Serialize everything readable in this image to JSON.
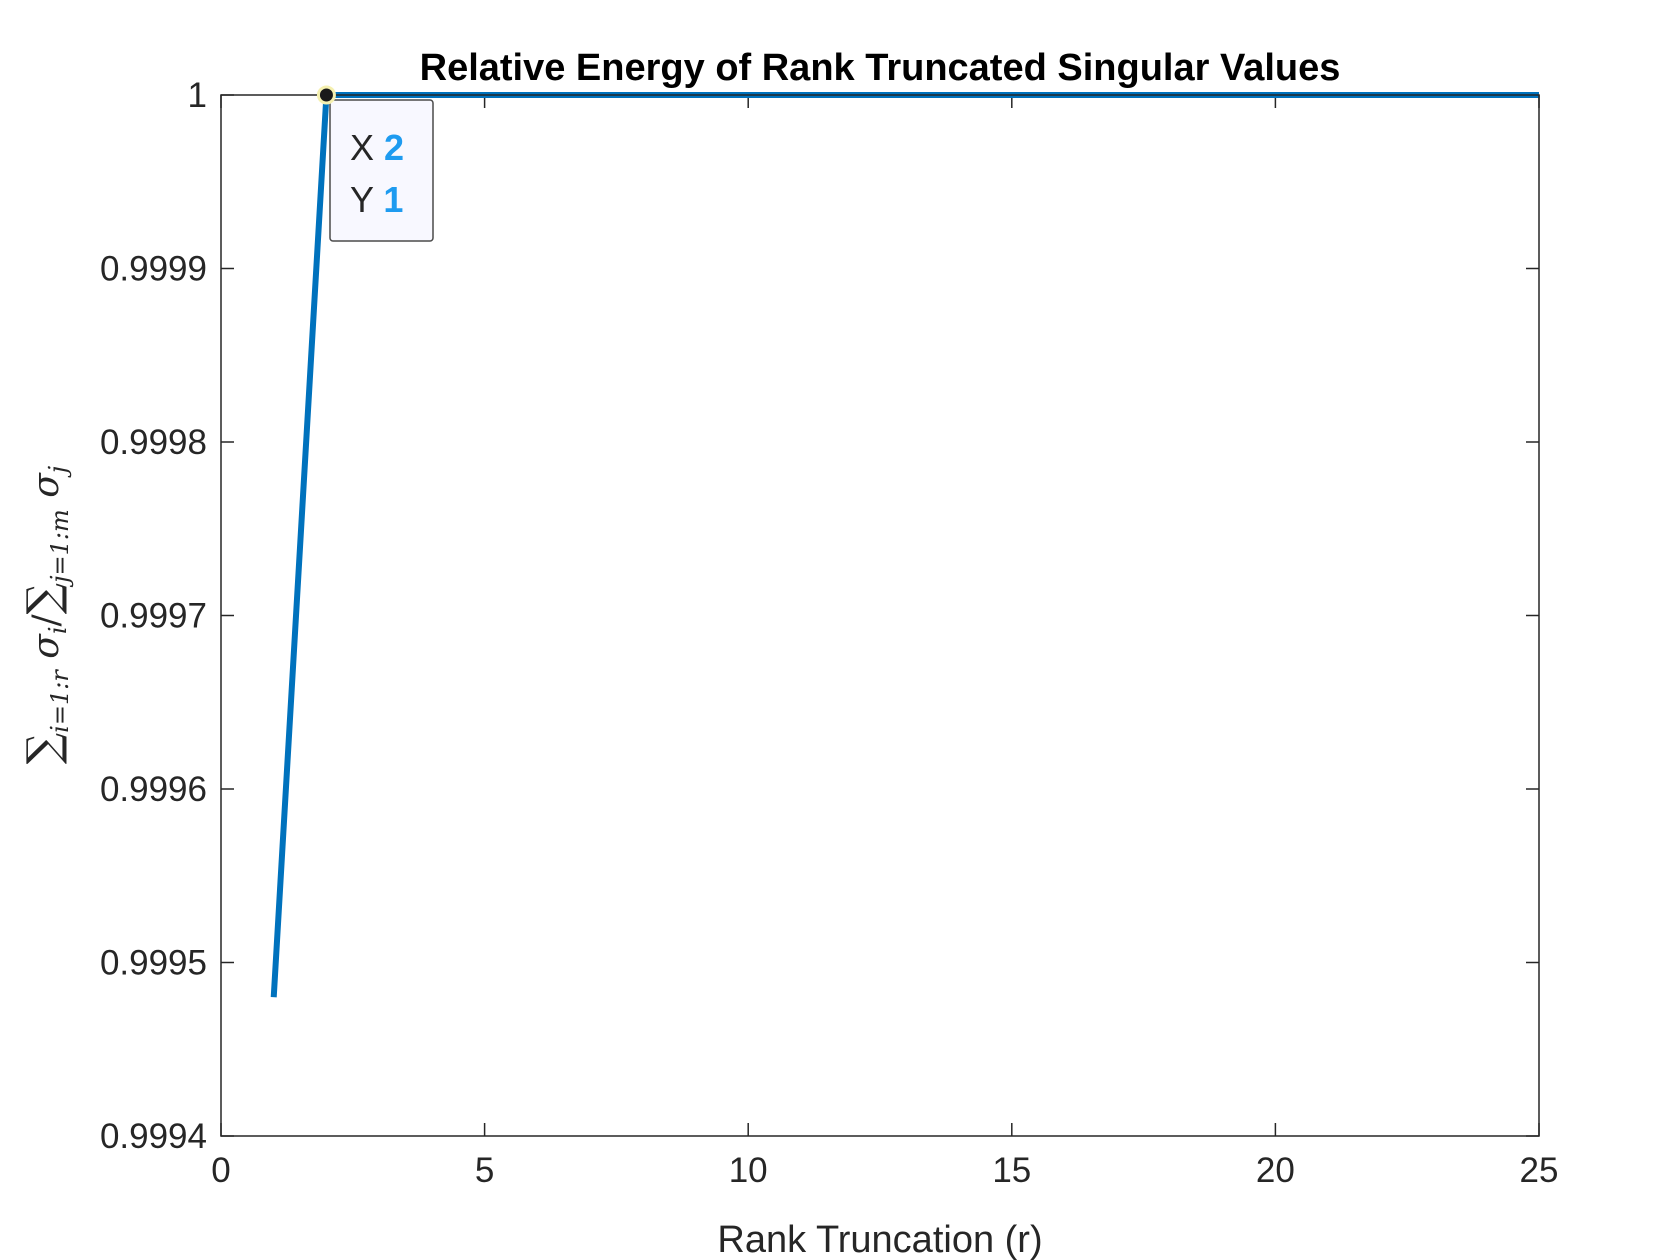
{
  "chart_data": {
    "type": "line",
    "title": "Relative Energy of Rank Truncated Singular Values",
    "xlabel": "Rank Truncation (r)",
    "ylabel": "∑i=1:r σi/∑j=1:m σj",
    "xlim": [
      0,
      25
    ],
    "ylim": [
      0.9994,
      1
    ],
    "xticks": [
      0,
      5,
      10,
      15,
      20,
      25
    ],
    "xtick_labels": [
      "0",
      "5",
      "10",
      "15",
      "20",
      "25"
    ],
    "yticks": [
      0.9994,
      0.9995,
      0.9996,
      0.9997,
      0.9998,
      0.9999,
      1
    ],
    "ytick_labels": [
      "0.9994",
      "0.9995",
      "0.9996",
      "0.9997",
      "0.9998",
      "0.9999",
      "1"
    ],
    "grid": false,
    "series": [
      {
        "color": "#0072BD",
        "x": [
          1,
          2,
          3,
          4,
          5,
          6,
          7,
          8,
          9,
          10,
          11,
          12,
          13,
          14,
          15,
          16,
          17,
          18,
          19,
          20,
          21,
          22,
          23,
          24,
          25
        ],
        "y": [
          0.99948,
          1,
          1,
          1,
          1,
          1,
          1,
          1,
          1,
          1,
          1,
          1,
          1,
          1,
          1,
          1,
          1,
          1,
          1,
          1,
          1,
          1,
          1,
          1,
          1
        ]
      }
    ],
    "datatip": {
      "x_label": "X",
      "x_value": "2",
      "y_label": "Y",
      "y_value": "1",
      "point": {
        "x": 2,
        "y": 1
      }
    }
  },
  "colors": {
    "line": "#0072BD",
    "axes": "#262626",
    "datatip_value": "#1E9BF0",
    "datatip_bg": "#F8F8FF"
  }
}
